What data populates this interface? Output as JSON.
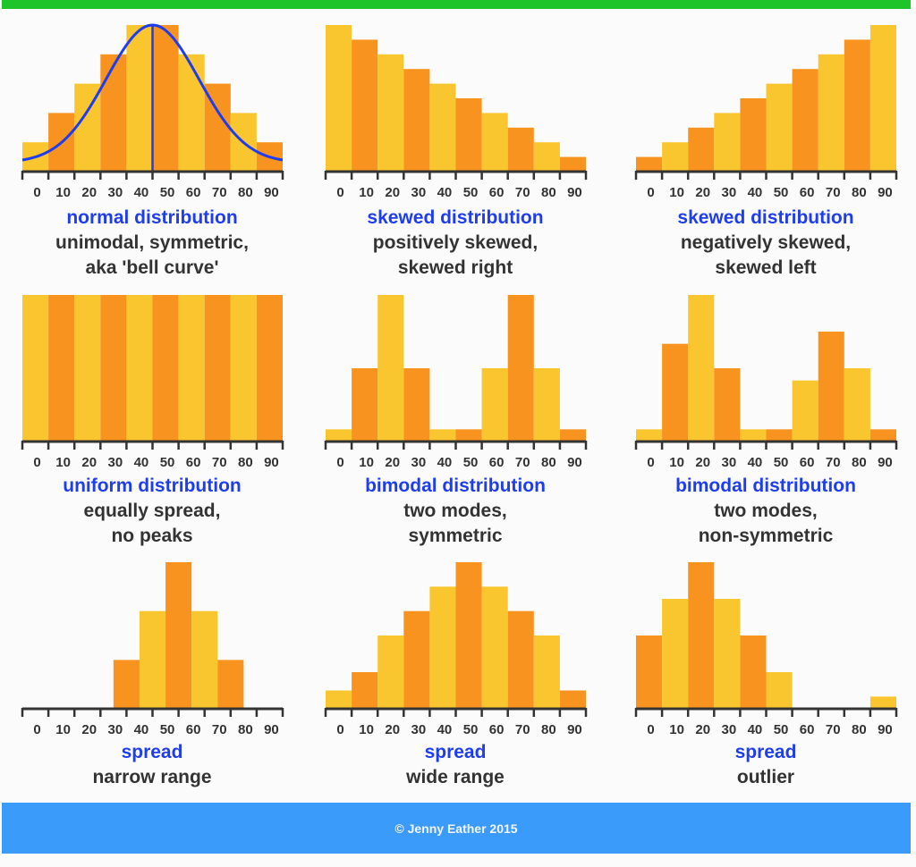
{
  "colors": {
    "top_bar": "#1fc32a",
    "footer": "#3a9bfb",
    "bar_yellow": "#f9c62f",
    "bar_orange": "#f7931e",
    "curve": "#1e3df0",
    "axis": "#333333",
    "title": "#1e3df0",
    "subtitle": "#333333"
  },
  "footer": {
    "text": "© Jenny Eather 2015"
  },
  "chart_data": [
    {
      "type": "bar",
      "title": "normal distribution",
      "subtitle": [
        "unimodal, symmetric,",
        "aka 'bell curve'"
      ],
      "categories": [
        "0",
        "10",
        "20",
        "30",
        "40",
        "50",
        "60",
        "70",
        "80",
        "90"
      ],
      "values": [
        1,
        2,
        3,
        4,
        5,
        5,
        4,
        3,
        2,
        1
      ],
      "ymax": 5,
      "first_color": "yellow",
      "offset_half_bin": false,
      "overlay": "bell-curve-with-center-line"
    },
    {
      "type": "bar",
      "title": "skewed distribution",
      "subtitle": [
        "positively skewed,",
        "skewed right"
      ],
      "categories": [
        "0",
        "10",
        "20",
        "30",
        "40",
        "50",
        "60",
        "70",
        "80",
        "90"
      ],
      "values": [
        10,
        9,
        8,
        7,
        6,
        5,
        4,
        3,
        2,
        1
      ],
      "ymax": 10,
      "first_color": "yellow",
      "offset_half_bin": false
    },
    {
      "type": "bar",
      "title": "skewed distribution",
      "subtitle": [
        "negatively skewed,",
        "skewed left"
      ],
      "categories": [
        "0",
        "10",
        "20",
        "30",
        "40",
        "50",
        "60",
        "70",
        "80",
        "90"
      ],
      "values": [
        1,
        2,
        3,
        4,
        5,
        6,
        7,
        8,
        9,
        10
      ],
      "ymax": 10,
      "first_color": "orange",
      "offset_half_bin": false
    },
    {
      "type": "bar",
      "title": "uniform distribution",
      "subtitle": [
        "equally spread,",
        "no peaks"
      ],
      "categories": [
        "0",
        "10",
        "20",
        "30",
        "40",
        "50",
        "60",
        "70",
        "80",
        "90"
      ],
      "values": [
        1,
        1,
        1,
        1,
        1,
        1,
        1,
        1,
        1,
        1
      ],
      "ymax": 1,
      "first_color": "yellow",
      "offset_half_bin": false
    },
    {
      "type": "bar",
      "title": "bimodal distribution",
      "subtitle": [
        "two modes,",
        "symmetric"
      ],
      "categories": [
        "0",
        "10",
        "20",
        "30",
        "40",
        "50",
        "60",
        "70",
        "80",
        "90"
      ],
      "values": [
        1,
        6,
        12,
        6,
        1,
        1,
        6,
        12,
        6,
        1
      ],
      "ymax": 12,
      "first_color": "yellow",
      "offset_half_bin": false
    },
    {
      "type": "bar",
      "title": "bimodal distribution",
      "subtitle": [
        "two modes,",
        "non-symmetric"
      ],
      "categories": [
        "0",
        "10",
        "20",
        "30",
        "40",
        "50",
        "60",
        "70",
        "80",
        "90"
      ],
      "values": [
        1,
        8,
        12,
        6,
        1,
        1,
        5,
        9,
        6,
        1
      ],
      "ymax": 12,
      "first_color": "yellow",
      "offset_half_bin": false
    },
    {
      "type": "bar",
      "title": "spread",
      "subtitle": [
        "narrow range"
      ],
      "categories": [
        "0",
        "10",
        "20",
        "30",
        "40",
        "50",
        "60",
        "70",
        "80",
        "90"
      ],
      "values": [
        0,
        0,
        0,
        1,
        2,
        3,
        2,
        1,
        0,
        0
      ],
      "ymax": 3,
      "first_color": "yellow",
      "offset_half_bin": true
    },
    {
      "type": "bar",
      "title": "spread",
      "subtitle": [
        "wide range"
      ],
      "categories": [
        "0",
        "10",
        "20",
        "30",
        "40",
        "50",
        "60",
        "70",
        "80",
        "90"
      ],
      "values": [
        3,
        6,
        12,
        16,
        20,
        24,
        20,
        16,
        12,
        3
      ],
      "ymax": 24,
      "first_color": "yellow",
      "offset_half_bin": false
    },
    {
      "type": "bar",
      "title": "spread",
      "subtitle": [
        "outlier"
      ],
      "categories": [
        "0",
        "10",
        "20",
        "30",
        "40",
        "50",
        "60",
        "70",
        "80",
        "90"
      ],
      "values": [
        6,
        9,
        12,
        9,
        6,
        3,
        0,
        0,
        0,
        1
      ],
      "ymax": 12,
      "first_color": "orange",
      "offset_half_bin": false
    }
  ]
}
